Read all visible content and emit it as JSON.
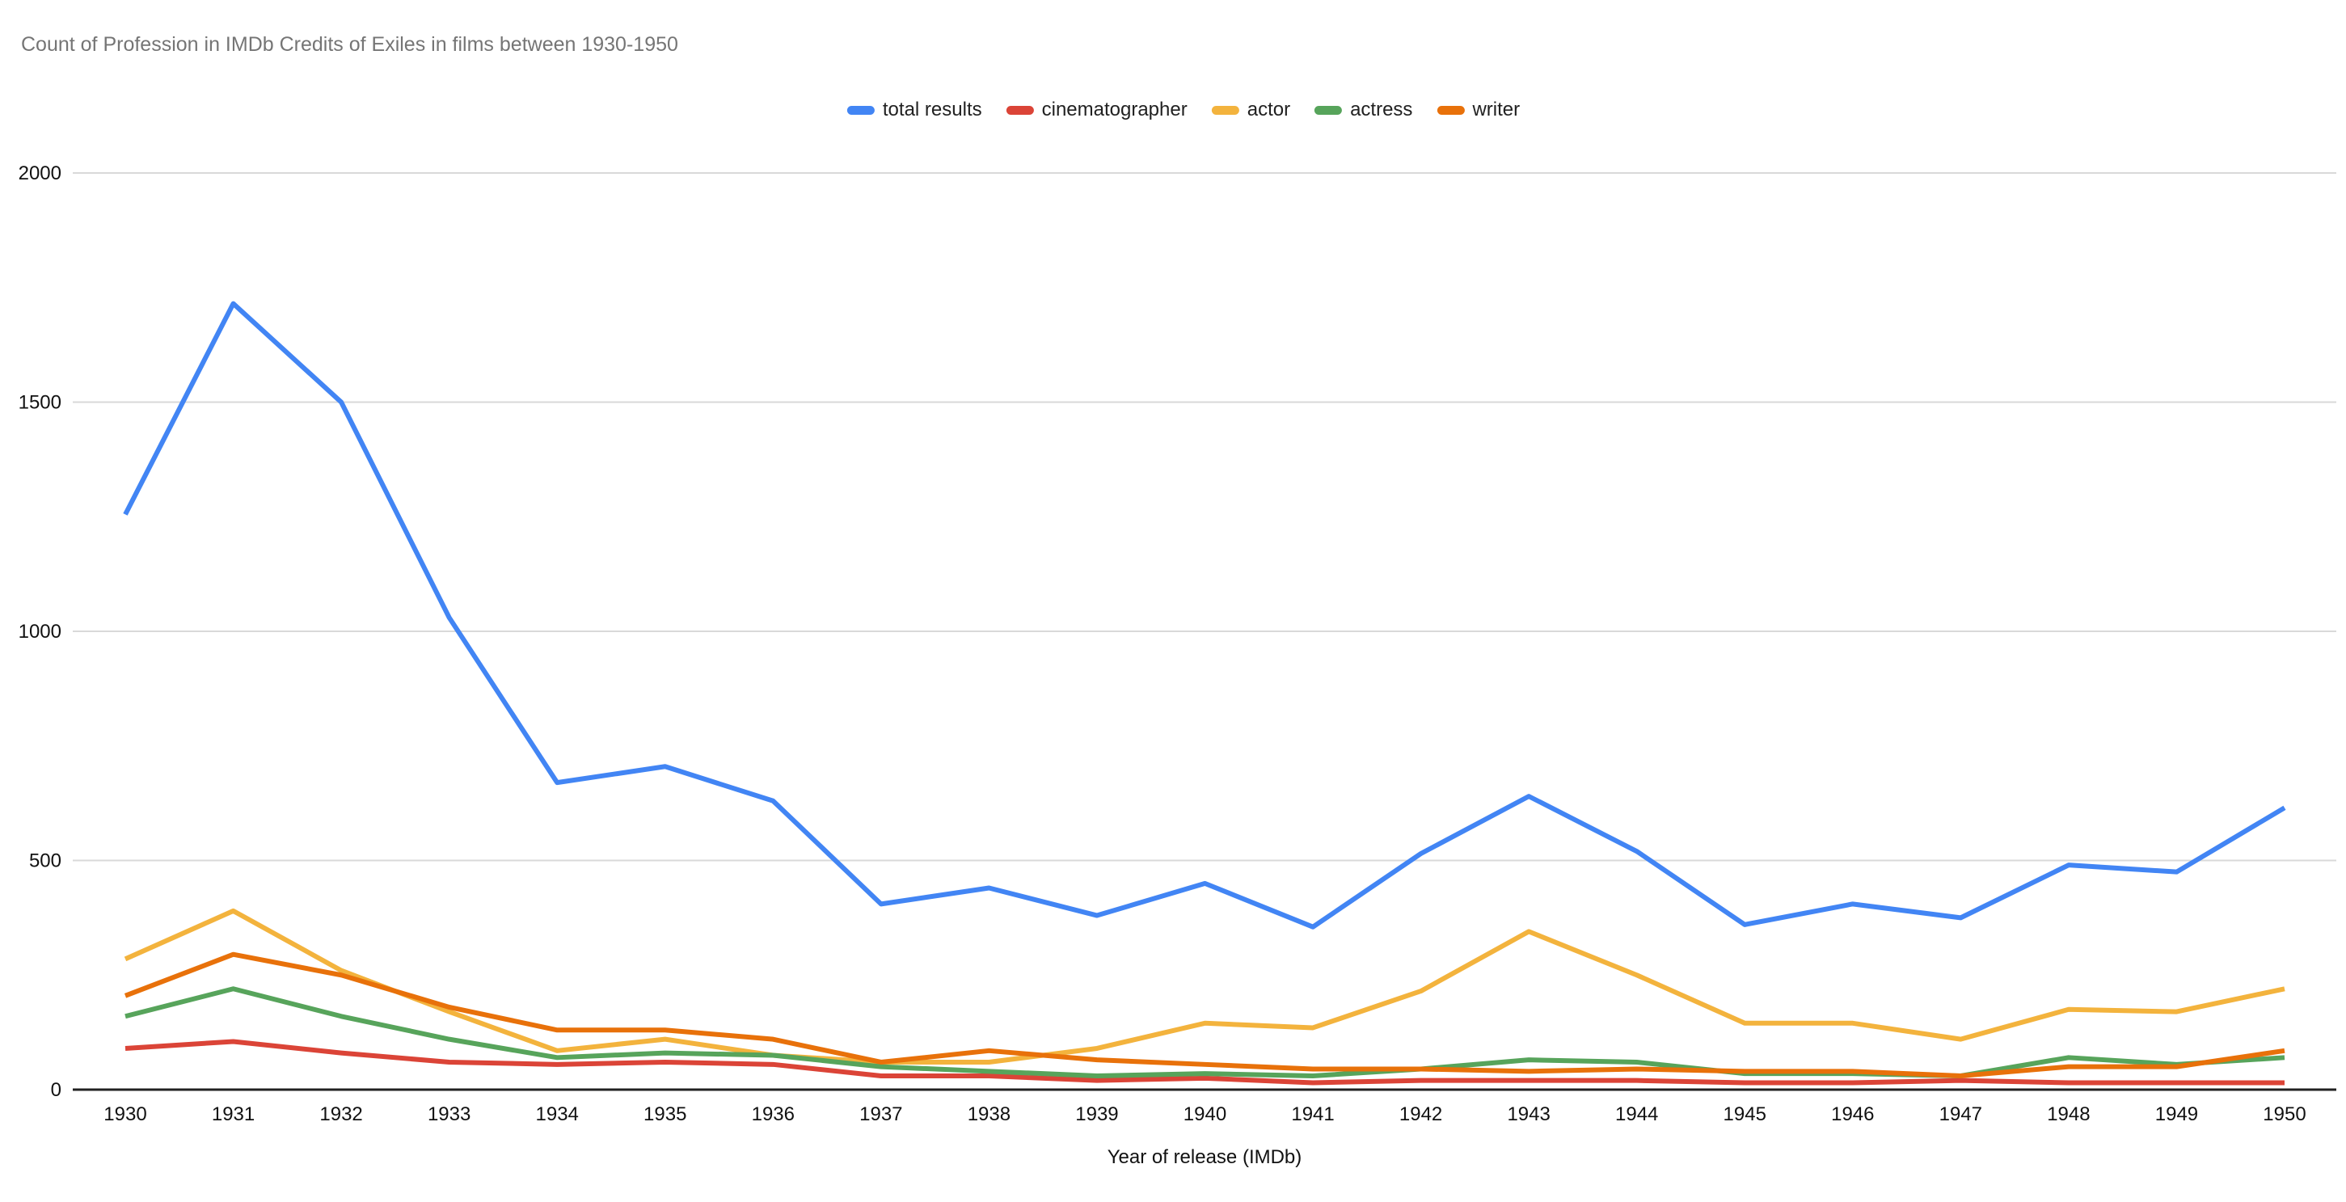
{
  "title": "Count of Profession in IMDb Credits of Exiles in films between 1930-1950",
  "x_axis_title": "Year of release (IMDb)",
  "chart_data": {
    "type": "line",
    "title": "Count of Profession in IMDb Credits of Exiles in films between 1930-1950",
    "xlabel": "Year of release (IMDb)",
    "ylabel": "",
    "ylim": [
      0,
      2000
    ],
    "yticks": [
      0,
      500,
      1000,
      1500,
      2000
    ],
    "grid": true,
    "legend_position": "top",
    "x": [
      1930,
      1931,
      1932,
      1933,
      1934,
      1935,
      1936,
      1937,
      1938,
      1939,
      1940,
      1941,
      1942,
      1943,
      1944,
      1945,
      1946,
      1947,
      1948,
      1949,
      1950
    ],
    "series": [
      {
        "name": "total results",
        "color": "#4285F4",
        "values": [
          1255,
          1715,
          1500,
          1030,
          670,
          705,
          630,
          405,
          440,
          380,
          450,
          355,
          515,
          640,
          520,
          360,
          405,
          375,
          490,
          475,
          615
        ]
      },
      {
        "name": "cinematographer",
        "color": "#DB4437",
        "values": [
          90,
          105,
          80,
          60,
          55,
          60,
          55,
          30,
          30,
          20,
          25,
          15,
          20,
          20,
          20,
          15,
          15,
          20,
          15,
          15,
          15
        ]
      },
      {
        "name": "actor",
        "color": "#F3B33D",
        "values": [
          285,
          390,
          260,
          170,
          85,
          110,
          75,
          60,
          60,
          90,
          145,
          135,
          215,
          345,
          250,
          145,
          145,
          110,
          175,
          170,
          220
        ]
      },
      {
        "name": "actress",
        "color": "#57A45B",
        "values": [
          160,
          220,
          160,
          110,
          70,
          80,
          75,
          50,
          40,
          30,
          35,
          30,
          45,
          65,
          60,
          35,
          35,
          30,
          70,
          55,
          70
        ]
      },
      {
        "name": "writer",
        "color": "#E8710A",
        "values": [
          205,
          295,
          250,
          180,
          130,
          130,
          110,
          60,
          85,
          65,
          55,
          45,
          45,
          40,
          45,
          40,
          40,
          30,
          50,
          50,
          85
        ]
      }
    ]
  },
  "style": {
    "gridline_color": "#D9D9D9",
    "axis_color": "#212121",
    "tick_label_color": "#111111",
    "title_color": "#757575"
  }
}
